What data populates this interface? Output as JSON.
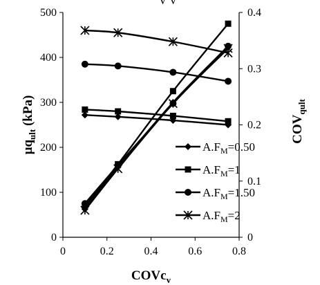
{
  "chart_data": {
    "type": "line",
    "title": "",
    "top_text_fragment": "V V",
    "xlabel": {
      "main": "COVc",
      "sub": "v"
    },
    "ylabel_left": {
      "main": "μq",
      "sub": "ult",
      "unit": " (kPa)"
    },
    "ylabel_right": {
      "main": "COV",
      "sub": "qult"
    },
    "xlim": [
      0,
      0.8
    ],
    "ylim_left": [
      0,
      500
    ],
    "ylim_right": [
      0,
      0.4
    ],
    "x_ticks": [
      "0",
      "0.2",
      "0.4",
      "0.6",
      "0.8"
    ],
    "y_left_ticks": [
      "0",
      "100",
      "200",
      "300",
      "400",
      "500"
    ],
    "y_right_ticks": [
      "0",
      "0.1",
      "0.2",
      "0.3",
      "0.4"
    ],
    "grid": false,
    "legend_position": "right",
    "x": [
      0.1,
      0.25,
      0.5,
      0.75
    ],
    "series": [
      {
        "name": "A.F=0.50",
        "label_main": "A.F",
        "label_sub": "M",
        "label_value": "=0.50",
        "marker": "diamond",
        "mean_values": [
          272,
          268,
          260,
          250
        ],
        "cov_values": [
          0.05,
          0.125,
          0.24,
          0.34
        ]
      },
      {
        "name": "A.F=1",
        "label_main": "A.F",
        "label_sub": "M",
        "label_value": "=1",
        "marker": "square",
        "mean_values": [
          284,
          280,
          270,
          258
        ],
        "cov_values": [
          0.055,
          0.13,
          0.26,
          0.38
        ]
      },
      {
        "name": "A.F=1.50",
        "label_main": "A.F",
        "label_sub": "M",
        "label_value": "=1.50",
        "marker": "circle",
        "mean_values": [
          385,
          381,
          367,
          347
        ],
        "cov_values": [
          0.06,
          0.128,
          0.238,
          0.34
        ]
      },
      {
        "name": "A.F=2",
        "label_main": "A.F",
        "label_sub": "M",
        "label_value": "=2",
        "marker": "asterisk",
        "mean_values": [
          460,
          455,
          435,
          410
        ],
        "cov_values": [
          0.048,
          0.122,
          0.238,
          0.336
        ]
      }
    ]
  }
}
